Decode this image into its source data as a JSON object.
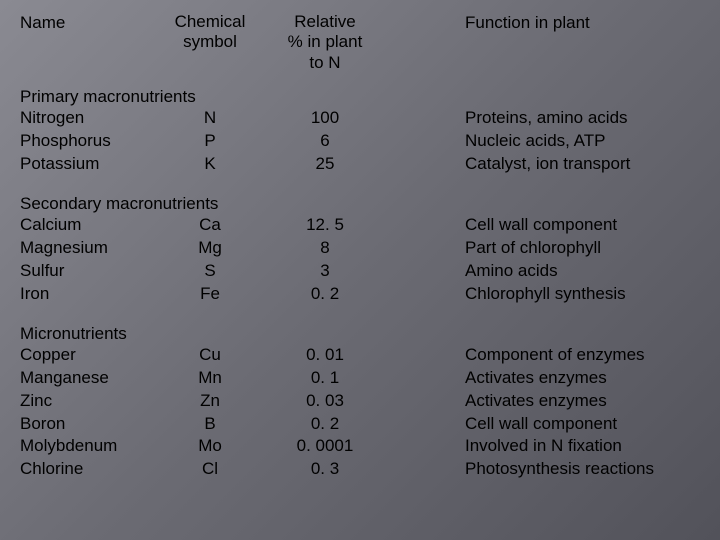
{
  "headers": {
    "name": "Name",
    "symbol_line1": "Chemical",
    "symbol_line2": "symbol",
    "relative_line1": "Relative",
    "relative_line2": "% in plant",
    "relative_line3": "to N",
    "function": "Function in plant"
  },
  "sections": {
    "primary": {
      "title": "Primary macronutrients",
      "rows": [
        {
          "name": "Nitrogen",
          "symbol": "N",
          "relative": "100",
          "function": "Proteins, amino acids"
        },
        {
          "name": "Phosphorus",
          "symbol": "P",
          "relative": "6",
          "function": "Nucleic acids, ATP"
        },
        {
          "name": "Potassium",
          "symbol": "K",
          "relative": "25",
          "function": "Catalyst, ion transport"
        }
      ]
    },
    "secondary": {
      "title": "Secondary macronutrients",
      "rows": [
        {
          "name": "Calcium",
          "symbol": "Ca",
          "relative": "12. 5",
          "function": "Cell wall component"
        },
        {
          "name": "Magnesium",
          "symbol": "Mg",
          "relative": "8",
          "function": "Part of chlorophyll"
        },
        {
          "name": "Sulfur",
          "symbol": "S",
          "relative": "3",
          "function": "Amino acids"
        },
        {
          "name": "Iron",
          "symbol": "Fe",
          "relative": "0. 2",
          "function": "Chlorophyll synthesis"
        }
      ]
    },
    "micro": {
      "title": "Micronutrients",
      "rows": [
        {
          "name": "Copper",
          "symbol": "Cu",
          "relative": "0. 01",
          "function": "Component of enzymes"
        },
        {
          "name": "Manganese",
          "symbol": "Mn",
          "relative": "0. 1",
          "function": "Activates enzymes"
        },
        {
          "name": "Zinc",
          "symbol": "Zn",
          "relative": "0. 03",
          "function": "Activates enzymes"
        },
        {
          "name": "Boron",
          "symbol": "B",
          "relative": "0. 2",
          "function": "Cell wall component"
        },
        {
          "name": "Molybdenum",
          "symbol": "Mo",
          "relative": "0. 0001",
          "function": "Involved in N fixation"
        },
        {
          "name": "Chlorine",
          "symbol": "Cl",
          "relative": "0. 3",
          "function": "Photosynthesis reactions"
        }
      ]
    }
  }
}
